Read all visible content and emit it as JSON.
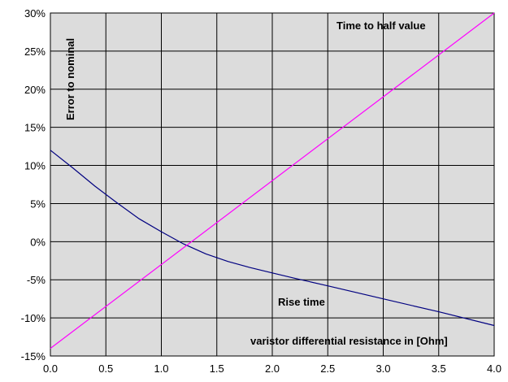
{
  "chart_data": {
    "type": "line",
    "title": "",
    "xlabel": "varistor differential resistance in [Ohm]",
    "ylabel": "Error to nominal",
    "xlim": [
      0,
      4
    ],
    "ylim": [
      -15,
      30
    ],
    "x_ticks": [
      "0.0",
      "0.5",
      "1.0",
      "1.5",
      "2.0",
      "2.5",
      "3.0",
      "3.5",
      "4.0"
    ],
    "y_ticks": [
      "-15%",
      "-10%",
      "-5%",
      "0%",
      "5%",
      "10%",
      "15%",
      "20%",
      "25%",
      "30%"
    ],
    "grid": true,
    "plot_background": "#dcdcdc",
    "series": [
      {
        "name": "Rise time",
        "color": "#000080",
        "x": [
          0.0,
          0.2,
          0.4,
          0.6,
          0.8,
          1.0,
          1.2,
          1.4,
          1.6,
          1.8,
          2.0,
          2.2,
          2.5,
          3.0,
          3.5,
          4.0
        ],
        "y": [
          12.0,
          9.7,
          7.3,
          5.1,
          3.0,
          1.3,
          -0.3,
          -1.6,
          -2.6,
          -3.4,
          -4.1,
          -4.8,
          -5.8,
          -7.5,
          -9.2,
          -11.0
        ]
      },
      {
        "name": "Time to half value",
        "color": "#ff00ff",
        "x": [
          0.0,
          4.0
        ],
        "y": [
          -14.0,
          30.0
        ]
      }
    ],
    "annotations": [
      {
        "text": "Time to half value",
        "x": 2.5,
        "y": 28.0
      },
      {
        "text": "Rise time",
        "x": 2.05,
        "y": -8.1
      }
    ]
  }
}
